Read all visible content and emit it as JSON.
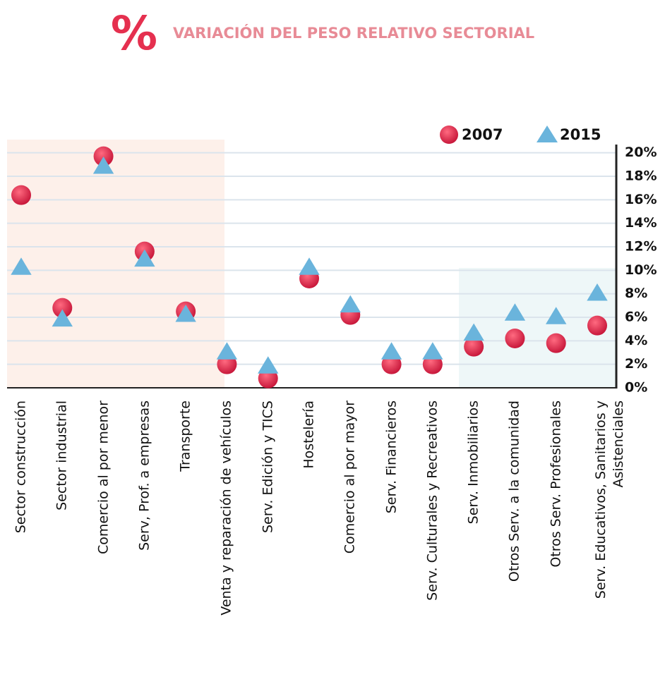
{
  "chart_data": {
    "type": "dot",
    "icon": "%",
    "title": "VARIACIÓN DEL PESO RELATIVO SECTORIAL",
    "categories": [
      "Sector construcción",
      "Sector industrial",
      "Comercio al por menor",
      "Serv, Prof. a empresas",
      "Transporte",
      "Venta y reparación de vehículos",
      "Serv. Edición y TICS",
      "Hostelería",
      "Comercio al por mayor",
      "Serv. Financieros",
      "Serv. Culturales y Recreativos",
      "Serv. Inmobiliarios",
      "Otros Serv. a la comunidad",
      "Otros Serv. Profesionales",
      "Serv. Educativos, Sanitarios y Asistenciales"
    ],
    "series": [
      {
        "name": "2007",
        "color": "#e0284a",
        "marker": "circle",
        "values": [
          16.4,
          6.8,
          19.7,
          11.6,
          6.5,
          2.0,
          0.8,
          9.3,
          6.2,
          2.0,
          2.0,
          3.5,
          4.2,
          3.8,
          5.3
        ]
      },
      {
        "name": "2015",
        "color": "#6ab4dc",
        "marker": "triangle",
        "values": [
          10.2,
          5.8,
          18.8,
          10.9,
          6.2,
          3.0,
          1.8,
          10.2,
          7.0,
          3.0,
          3.0,
          4.6,
          6.3,
          6.0,
          8.0
        ]
      }
    ],
    "ylim": [
      0,
      20.4
    ],
    "yticks": [
      {
        "value": 0,
        "label": "0%"
      },
      {
        "value": 2,
        "label": "2%"
      },
      {
        "value": 4,
        "label": "4%"
      },
      {
        "value": 6,
        "label": "6%"
      },
      {
        "value": 8,
        "label": "8%"
      },
      {
        "value": 10,
        "label": "10%"
      },
      {
        "value": 12,
        "label": "12%"
      },
      {
        "value": 14,
        "label": "14%"
      },
      {
        "value": 16,
        "label": "16%"
      },
      {
        "value": 18,
        "label": "18%"
      },
      {
        "value": 20,
        "label": "20%"
      }
    ],
    "grid": true,
    "legend": "top-right"
  }
}
